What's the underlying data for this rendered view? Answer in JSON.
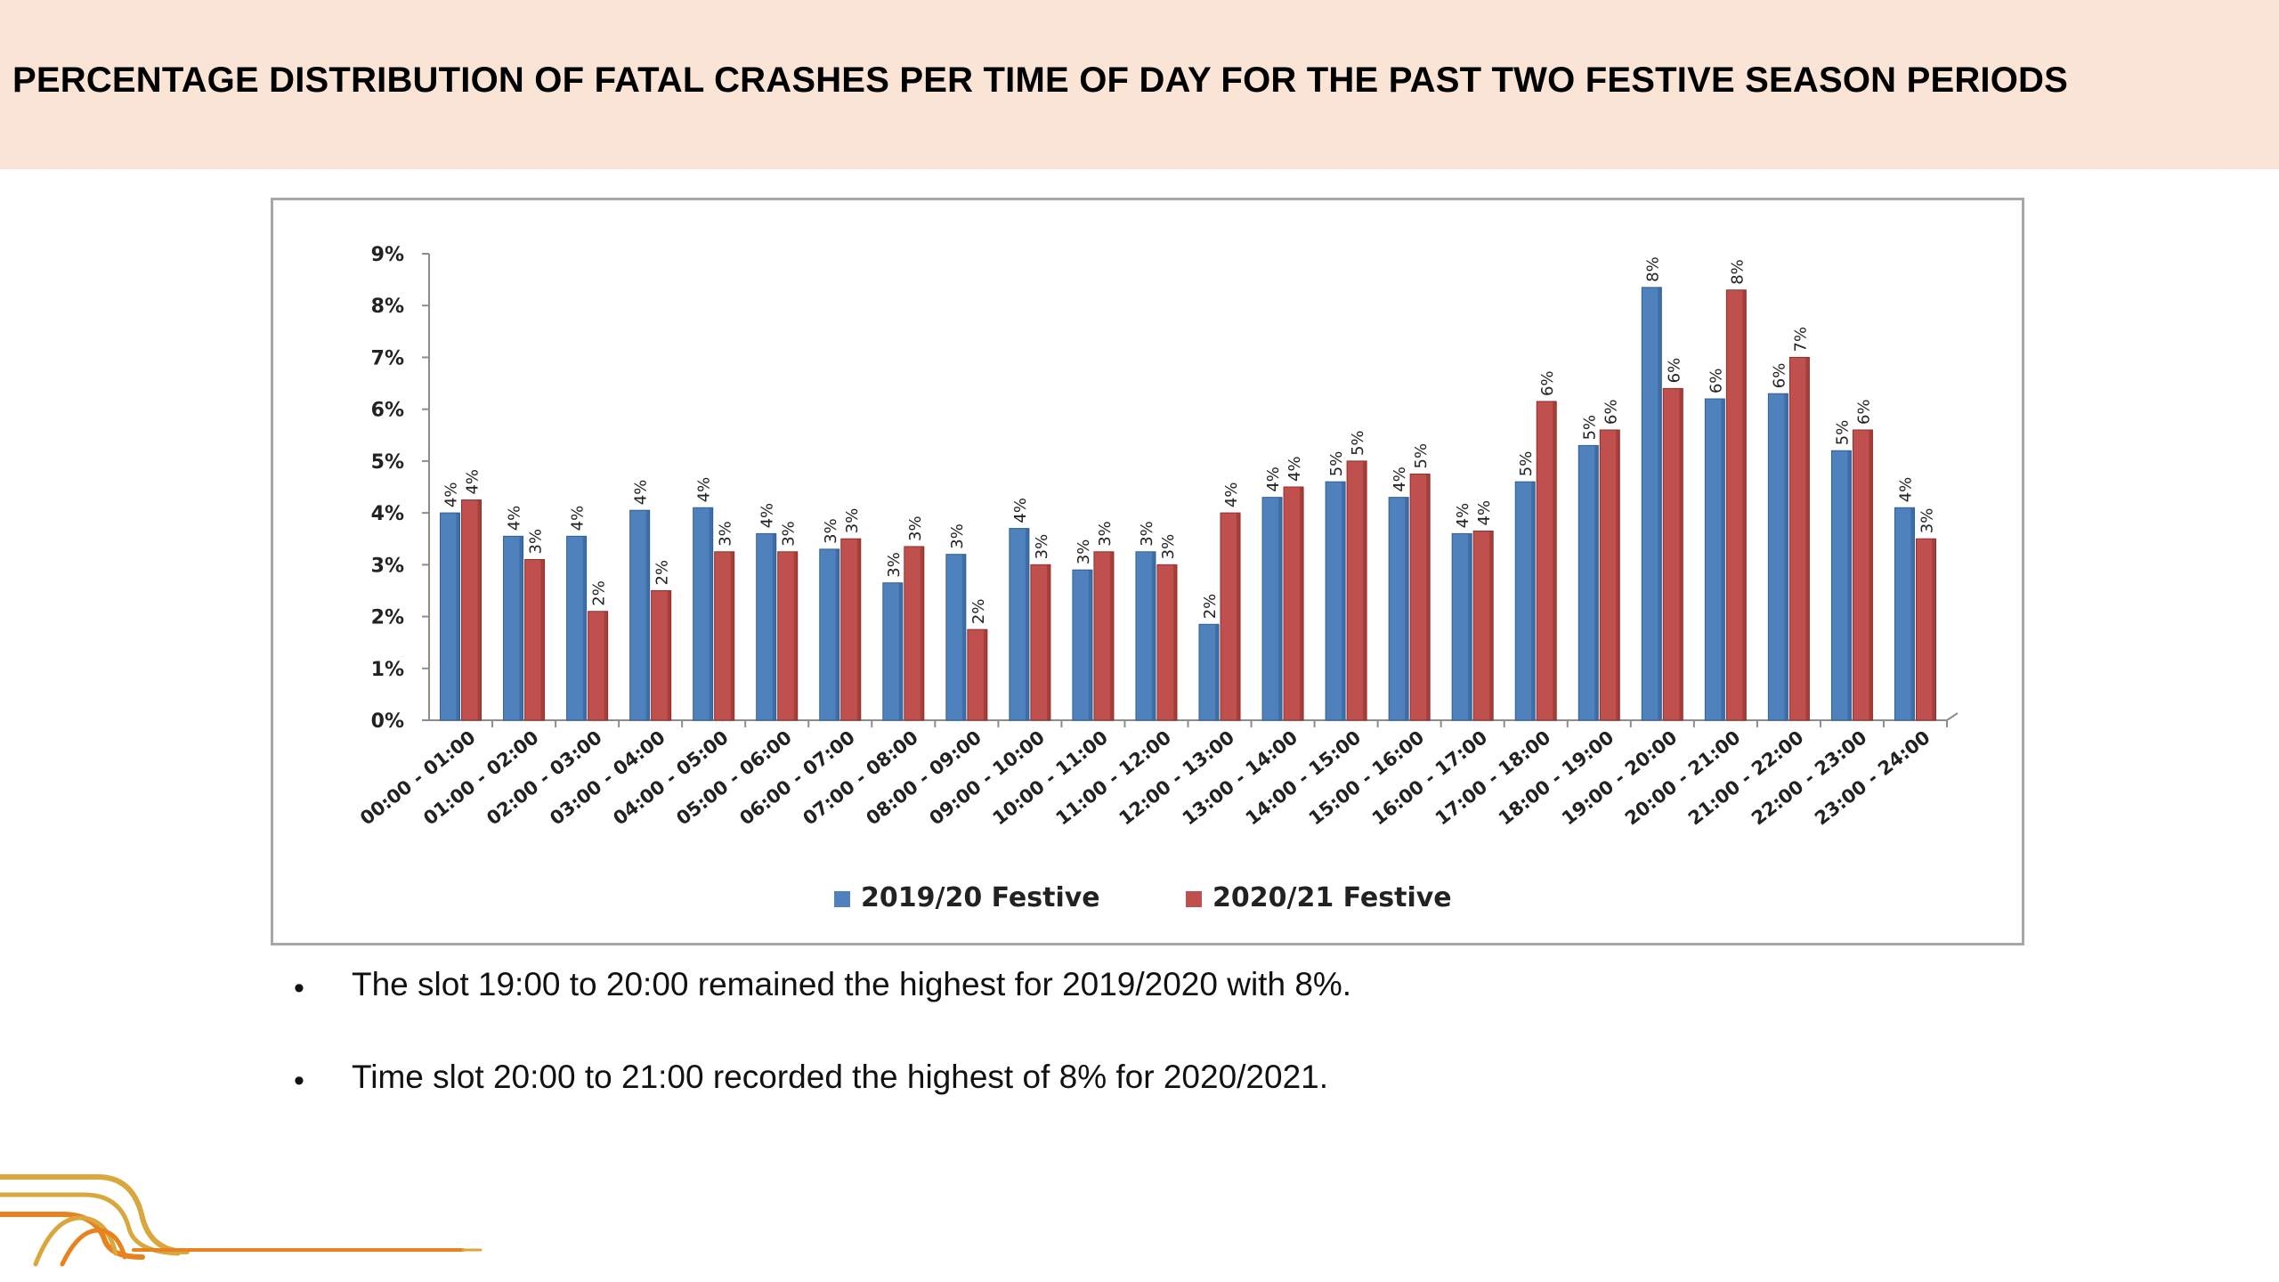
{
  "header": {
    "title": "PERCENTAGE DISTRIBUTION OF FATAL CRASHES PER TIME OF DAY FOR THE PAST TWO FESTIVE SEASON PERIODS"
  },
  "colors": {
    "title_band": "#f9e4d6",
    "series_2019": "#4f81bd",
    "series_2020": "#c0504d",
    "logo_orange": "#e8821e",
    "logo_gold": "#d9a73b"
  },
  "chart_data": {
    "type": "bar",
    "categories": [
      "00:00 - 01:00",
      "01:00 - 02:00",
      "02:00 - 03:00",
      "03:00 - 04:00",
      "04:00 - 05:00",
      "05:00 - 06:00",
      "06:00 - 07:00",
      "07:00 - 08:00",
      "08:00 - 09:00",
      "09:00 - 10:00",
      "10:00 - 11:00",
      "11:00 - 12:00",
      "12:00 - 13:00",
      "13:00 - 14:00",
      "14:00 - 15:00",
      "15:00 - 16:00",
      "16:00 - 17:00",
      "17:00 - 18:00",
      "18:00 - 19:00",
      "19:00 - 20:00",
      "20:00 - 21:00",
      "21:00 - 22:00",
      "22:00 - 23:00",
      "23:00 - 24:00"
    ],
    "series": [
      {
        "name": "2019/20 Festive",
        "values": [
          4.0,
          3.55,
          3.55,
          4.05,
          4.1,
          3.6,
          3.3,
          2.65,
          3.2,
          3.7,
          2.9,
          3.25,
          1.85,
          4.3,
          4.6,
          4.3,
          3.6,
          4.6,
          5.3,
          8.35,
          6.2,
          6.3,
          5.2,
          4.1
        ],
        "labels": [
          "4%",
          "4%",
          "4%",
          "4%",
          "4%",
          "4%",
          "3%",
          "3%",
          "3%",
          "4%",
          "3%",
          "3%",
          "2%",
          "4%",
          "5%",
          "4%",
          "4%",
          "5%",
          "5%",
          "8%",
          "6%",
          "6%",
          "5%",
          "4%"
        ]
      },
      {
        "name": "2020/21 Festive",
        "values": [
          4.25,
          3.1,
          2.1,
          2.5,
          3.25,
          3.25,
          3.5,
          3.35,
          1.75,
          3.0,
          3.25,
          3.0,
          4.0,
          4.5,
          5.0,
          4.75,
          3.65,
          6.15,
          5.6,
          6.4,
          8.3,
          7.0,
          5.6,
          3.5
        ],
        "labels": [
          "4%",
          "3%",
          "2%",
          "2%",
          "3%",
          "3%",
          "3%",
          "3%",
          "2%",
          "3%",
          "3%",
          "3%",
          "4%",
          "4%",
          "5%",
          "5%",
          "4%",
          "6%",
          "6%",
          "6%",
          "8%",
          "7%",
          "6%",
          "3%"
        ]
      }
    ],
    "yticks": [
      "0%",
      "1%",
      "2%",
      "3%",
      "4%",
      "5%",
      "6%",
      "7%",
      "8%",
      "9%"
    ],
    "ylim": [
      0,
      9
    ],
    "legend_position": "bottom",
    "grid": false
  },
  "bullets": [
    "The slot 19:00 to 20:00 remained the highest for 2019/2020 with 8%.",
    "Time slot 20:00 to 21:00 recorded the highest of 8% for 2020/2021."
  ],
  "bullet_symbol": "•"
}
